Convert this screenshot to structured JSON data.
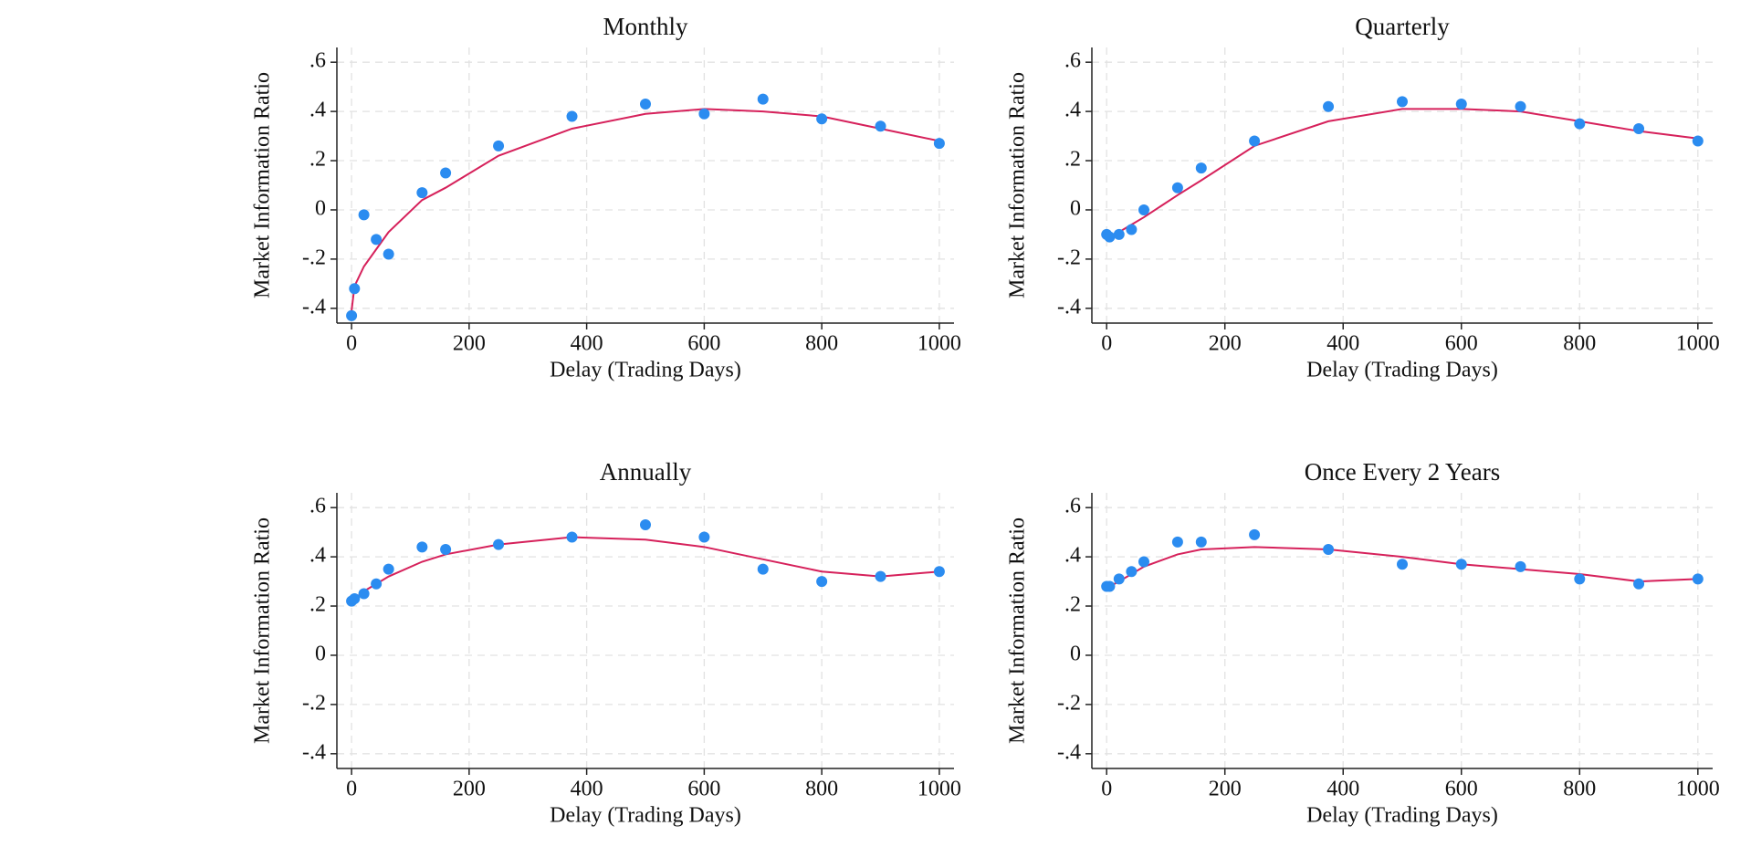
{
  "chart_data": [
    {
      "type": "scatter",
      "title": "Monthly",
      "xlabel": "Delay (Trading Days)",
      "ylabel": "Market Information Ratio",
      "xlim": [
        -25,
        1025
      ],
      "ylim": [
        -0.46,
        0.66
      ],
      "grid": true,
      "xticks": [
        0,
        200,
        400,
        600,
        800,
        1000
      ],
      "yticks": [
        {
          "value": -0.4,
          "label": "-.4"
        },
        {
          "value": -0.2,
          "label": "-.2"
        },
        0,
        {
          "value": 0.2,
          "label": ".2"
        },
        {
          "value": 0.4,
          "label": ".4"
        },
        {
          "value": 0.6,
          "label": ".6"
        }
      ],
      "points": {
        "color": "#2b8cf0",
        "x": [
          0,
          5,
          21,
          42,
          63,
          120,
          160,
          250,
          375,
          500,
          600,
          700,
          800,
          900,
          1000
        ],
        "y": [
          -0.43,
          -0.32,
          -0.02,
          -0.12,
          -0.18,
          0.07,
          0.15,
          0.26,
          0.38,
          0.43,
          0.39,
          0.45,
          0.37,
          0.34,
          0.27
        ]
      },
      "fit": {
        "color": "#d6215b",
        "x": [
          0,
          5,
          21,
          42,
          63,
          120,
          160,
          250,
          375,
          500,
          600,
          700,
          800,
          900,
          1000
        ],
        "y": [
          -0.41,
          -0.31,
          -0.23,
          -0.16,
          -0.09,
          0.04,
          0.09,
          0.22,
          0.33,
          0.39,
          0.41,
          0.4,
          0.38,
          0.33,
          0.28
        ]
      }
    },
    {
      "type": "scatter",
      "title": "Quarterly",
      "xlabel": "Delay (Trading Days)",
      "ylabel": "Market Information Ratio",
      "xlim": [
        -25,
        1025
      ],
      "ylim": [
        -0.46,
        0.66
      ],
      "grid": true,
      "xticks": [
        0,
        200,
        400,
        600,
        800,
        1000
      ],
      "yticks": [
        {
          "value": -0.4,
          "label": "-.4"
        },
        {
          "value": -0.2,
          "label": "-.2"
        },
        0,
        {
          "value": 0.2,
          "label": ".2"
        },
        {
          "value": 0.4,
          "label": ".4"
        },
        {
          "value": 0.6,
          "label": ".6"
        }
      ],
      "points": {
        "color": "#2b8cf0",
        "x": [
          0,
          5,
          21,
          42,
          63,
          120,
          160,
          250,
          375,
          500,
          600,
          700,
          800,
          900,
          1000
        ],
        "y": [
          -0.1,
          -0.11,
          -0.1,
          -0.08,
          0.0,
          0.09,
          0.17,
          0.28,
          0.42,
          0.44,
          0.43,
          0.42,
          0.35,
          0.33,
          0.28
        ]
      },
      "fit": {
        "color": "#d6215b",
        "x": [
          0,
          5,
          21,
          42,
          63,
          120,
          160,
          250,
          375,
          500,
          600,
          700,
          800,
          900,
          1000
        ],
        "y": [
          -0.12,
          -0.11,
          -0.09,
          -0.06,
          -0.03,
          0.06,
          0.12,
          0.26,
          0.36,
          0.41,
          0.41,
          0.4,
          0.36,
          0.32,
          0.29
        ]
      }
    },
    {
      "type": "scatter",
      "title": "Annually",
      "xlabel": "Delay (Trading Days)",
      "ylabel": "Market Information Ratio",
      "xlim": [
        -25,
        1025
      ],
      "ylim": [
        -0.46,
        0.66
      ],
      "grid": true,
      "xticks": [
        0,
        200,
        400,
        600,
        800,
        1000
      ],
      "yticks": [
        {
          "value": -0.4,
          "label": "-.4"
        },
        {
          "value": -0.2,
          "label": "-.2"
        },
        0,
        {
          "value": 0.2,
          "label": ".2"
        },
        {
          "value": 0.4,
          "label": ".4"
        },
        {
          "value": 0.6,
          "label": ".6"
        }
      ],
      "points": {
        "color": "#2b8cf0",
        "x": [
          0,
          5,
          21,
          42,
          63,
          120,
          160,
          250,
          375,
          500,
          600,
          700,
          800,
          900,
          1000
        ],
        "y": [
          0.22,
          0.23,
          0.25,
          0.29,
          0.35,
          0.44,
          0.43,
          0.45,
          0.48,
          0.53,
          0.48,
          0.35,
          0.3,
          0.32,
          0.34
        ]
      },
      "fit": {
        "color": "#d6215b",
        "x": [
          0,
          5,
          21,
          42,
          63,
          120,
          160,
          250,
          375,
          500,
          600,
          700,
          800,
          900,
          1000
        ],
        "y": [
          0.22,
          0.23,
          0.26,
          0.29,
          0.32,
          0.38,
          0.41,
          0.45,
          0.48,
          0.47,
          0.44,
          0.39,
          0.34,
          0.32,
          0.34
        ]
      }
    },
    {
      "type": "scatter",
      "title": "Once Every 2 Years",
      "xlabel": "Delay (Trading Days)",
      "ylabel": "Market Information Ratio",
      "xlim": [
        -25,
        1025
      ],
      "ylim": [
        -0.46,
        0.66
      ],
      "grid": true,
      "xticks": [
        0,
        200,
        400,
        600,
        800,
        1000
      ],
      "yticks": [
        {
          "value": -0.4,
          "label": "-.4"
        },
        {
          "value": -0.2,
          "label": "-.2"
        },
        0,
        {
          "value": 0.2,
          "label": ".2"
        },
        {
          "value": 0.4,
          "label": ".4"
        },
        {
          "value": 0.6,
          "label": ".6"
        }
      ],
      "points": {
        "color": "#2b8cf0",
        "x": [
          0,
          5,
          21,
          42,
          63,
          120,
          160,
          250,
          375,
          500,
          600,
          700,
          800,
          900,
          1000
        ],
        "y": [
          0.28,
          0.28,
          0.31,
          0.34,
          0.38,
          0.46,
          0.46,
          0.49,
          0.43,
          0.37,
          0.37,
          0.36,
          0.31,
          0.29,
          0.31
        ]
      },
      "fit": {
        "color": "#d6215b",
        "x": [
          0,
          5,
          21,
          42,
          63,
          120,
          160,
          250,
          375,
          500,
          600,
          700,
          800,
          900,
          1000
        ],
        "y": [
          0.27,
          0.28,
          0.3,
          0.33,
          0.36,
          0.41,
          0.43,
          0.44,
          0.43,
          0.4,
          0.37,
          0.35,
          0.33,
          0.3,
          0.31
        ]
      }
    }
  ]
}
